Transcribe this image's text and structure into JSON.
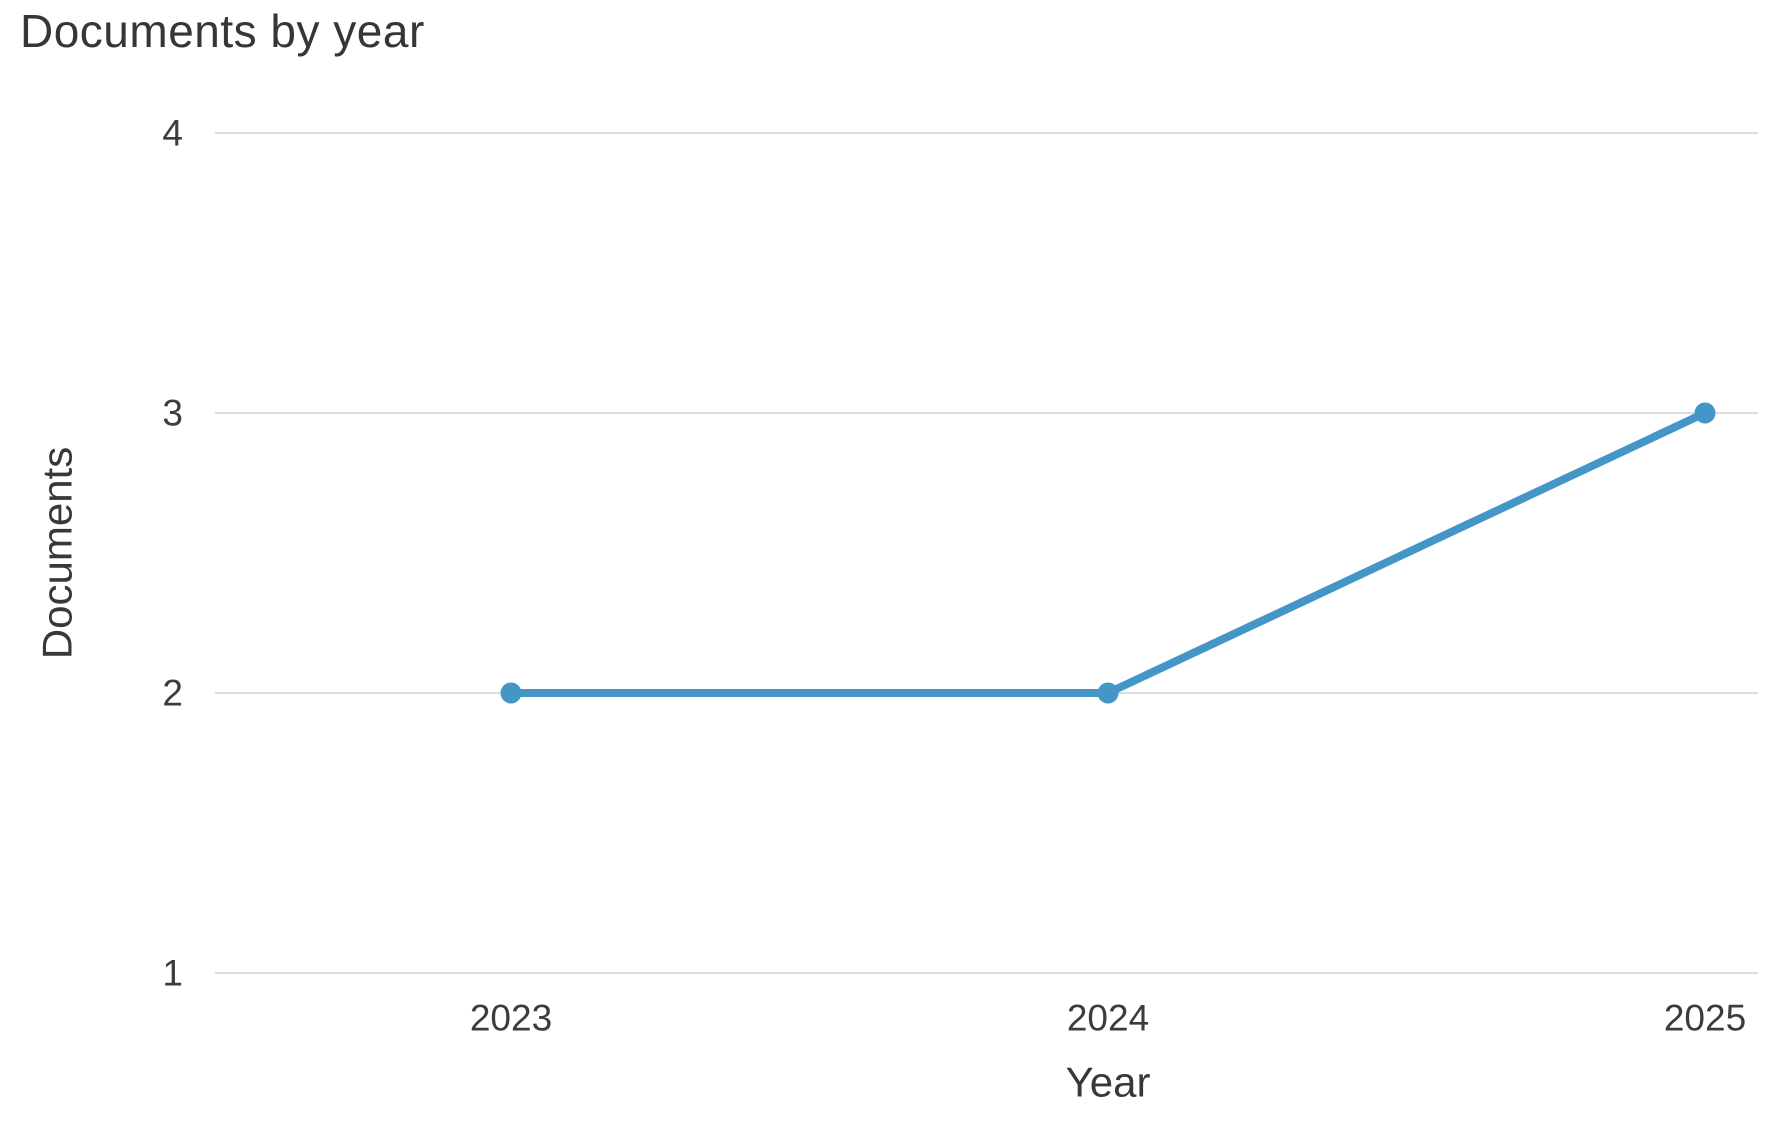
{
  "chart_data": {
    "type": "line",
    "title": "Documents by year",
    "xlabel": "Year",
    "ylabel": "Documents",
    "x": [
      "2023",
      "2024",
      "2025"
    ],
    "series": [
      {
        "name": "Documents",
        "values": [
          2,
          2,
          3
        ]
      }
    ],
    "ylim": [
      1,
      4
    ],
    "yticks": [
      1,
      2,
      3,
      4
    ],
    "grid": "horizontal-only",
    "legend": "none",
    "colors": {
      "line": "#4496c7",
      "point": "#4496c7",
      "gridline": "#dcdcdc",
      "baseline": "#d6dce8",
      "title_text": "#363636",
      "tick_text": "#3c3c3c",
      "axis_label_text": "#383838",
      "background": "#ffffff"
    }
  }
}
